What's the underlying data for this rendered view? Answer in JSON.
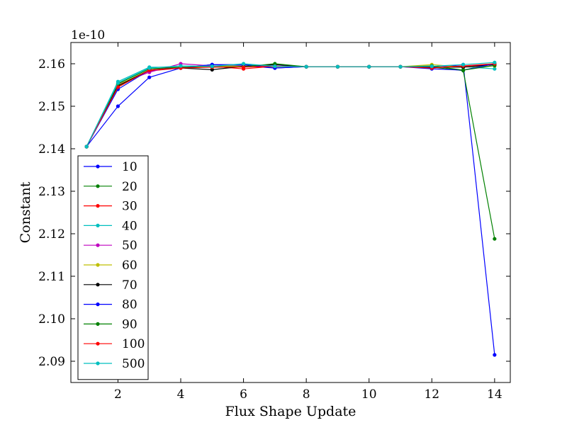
{
  "chart_data": {
    "type": "line",
    "title": "",
    "xlabel": "Flux Shape Update",
    "ylabel": "Constant",
    "y_offset_label": "1e-10",
    "xlim": [
      0.5,
      14.5
    ],
    "ylim": [
      2.085,
      2.165
    ],
    "x_ticks": [
      2,
      4,
      6,
      8,
      10,
      12,
      14
    ],
    "y_ticks": [
      2.09,
      2.1,
      2.11,
      2.12,
      2.13,
      2.14,
      2.15,
      2.16
    ],
    "grid": false,
    "legend_position": "lower-left",
    "x": [
      1,
      2,
      3,
      4,
      5,
      6,
      7,
      8,
      9,
      10,
      11,
      12,
      13,
      14
    ],
    "series": [
      {
        "name": "10",
        "color": "#0000ff",
        "values": [
          2.1405,
          2.15,
          2.1568,
          2.159,
          2.1598,
          2.1595,
          2.159,
          2.1593,
          2.1593,
          2.1593,
          2.1593,
          2.159,
          2.1598,
          2.0915
        ]
      },
      {
        "name": "20",
        "color": "#008000",
        "values": [
          2.1405,
          2.1545,
          2.1585,
          2.1592,
          2.1593,
          2.1594,
          2.1595,
          2.1593,
          2.1593,
          2.1593,
          2.1593,
          2.1592,
          2.1584,
          2.1188
        ]
      },
      {
        "name": "30",
        "color": "#ff0000",
        "values": [
          2.1405,
          2.155,
          2.1583,
          2.159,
          2.1594,
          2.1588,
          2.1594,
          2.1593,
          2.1593,
          2.1593,
          2.1593,
          2.1592,
          2.1593,
          2.1598
        ]
      },
      {
        "name": "40",
        "color": "#00bfbf",
        "values": [
          2.1405,
          2.1558,
          2.1592,
          2.1592,
          2.1594,
          2.1598,
          2.1595,
          2.1593,
          2.1593,
          2.1593,
          2.1593,
          2.1592,
          2.1593,
          2.1588
        ]
      },
      {
        "name": "50",
        "color": "#bf00bf",
        "values": [
          2.1405,
          2.1552,
          2.158,
          2.16,
          2.1595,
          2.1595,
          2.1595,
          2.1593,
          2.1593,
          2.1593,
          2.1593,
          2.1593,
          2.1592,
          2.16
        ]
      },
      {
        "name": "60",
        "color": "#bfbf00",
        "values": [
          2.1405,
          2.155,
          2.1585,
          2.159,
          2.1595,
          2.1594,
          2.1593,
          2.1593,
          2.1593,
          2.1593,
          2.1593,
          2.1598,
          2.1592,
          2.1595
        ]
      },
      {
        "name": "70",
        "color": "#000000",
        "values": [
          2.1405,
          2.1548,
          2.1585,
          2.159,
          2.1586,
          2.1594,
          2.1598,
          2.1593,
          2.1593,
          2.1593,
          2.1593,
          2.1592,
          2.1592,
          2.1598
        ]
      },
      {
        "name": "80",
        "color": "#0000ff",
        "values": [
          2.1405,
          2.154,
          2.1585,
          2.159,
          2.1598,
          2.1598,
          2.159,
          2.1593,
          2.1593,
          2.1593,
          2.1593,
          2.1588,
          2.1585,
          2.16
        ]
      },
      {
        "name": "90",
        "color": "#008000",
        "values": [
          2.1405,
          2.1553,
          2.1588,
          2.1592,
          2.1592,
          2.1593,
          2.16,
          2.1593,
          2.1593,
          2.1593,
          2.1593,
          2.1595,
          2.1585,
          2.1596
        ]
      },
      {
        "name": "100",
        "color": "#ff0000",
        "values": [
          2.1405,
          2.1545,
          2.1585,
          2.159,
          2.1592,
          2.1592,
          2.1594,
          2.1593,
          2.1593,
          2.1593,
          2.1593,
          2.159,
          2.1595,
          2.16
        ]
      },
      {
        "name": "500",
        "color": "#00bfbf",
        "values": [
          2.1405,
          2.1555,
          2.159,
          2.1595,
          2.1594,
          2.16,
          2.1594,
          2.1593,
          2.1593,
          2.1593,
          2.1593,
          2.1594,
          2.1598,
          2.1603
        ]
      }
    ]
  }
}
